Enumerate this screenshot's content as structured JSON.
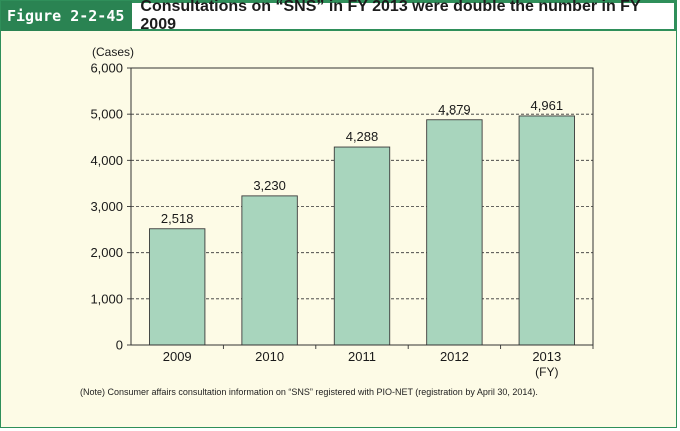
{
  "figure": {
    "label": "Figure 2-2-45",
    "title": "Consultations on “SNS” in FY 2013 were double the number in FY 2009"
  },
  "note": "(Note) Consumer affairs consultation information on “SNS” registered with PIO-NET (registration by April 30, 2014).",
  "chart_data": {
    "type": "bar",
    "categories": [
      "2009",
      "2010",
      "2011",
      "2012",
      "2013"
    ],
    "values": [
      2518,
      3230,
      4288,
      4879,
      4961
    ],
    "value_labels": [
      "2,518",
      "3,230",
      "4,288",
      "4,879",
      "4,961"
    ],
    "ylabel": "(Cases)",
    "xlabel": "(FY)",
    "ylim": [
      0,
      6000
    ],
    "yticks": [
      0,
      1000,
      2000,
      3000,
      4000,
      5000,
      6000
    ],
    "ytick_labels": [
      "0",
      "1,000",
      "2,000",
      "3,000",
      "4,000",
      "5,000",
      "6,000"
    ],
    "grid": "dashed",
    "bar_color": "#a8d5bd",
    "bar_border": "#3a3a3a"
  }
}
